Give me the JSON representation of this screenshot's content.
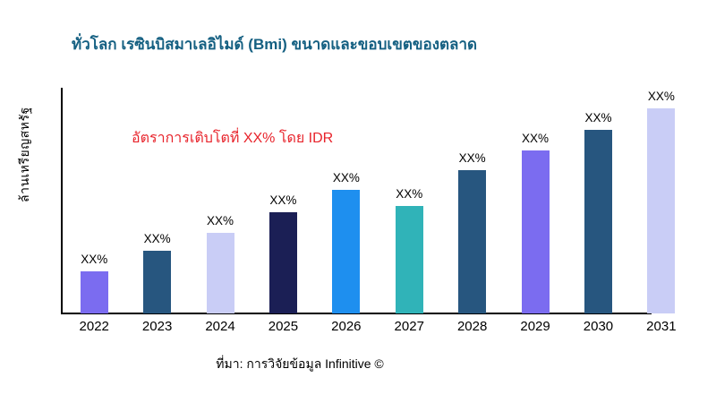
{
  "page": {
    "source": "ที่มา: การวิจัยข้อมูล Infinitive ©"
  },
  "chart_data": {
    "type": "bar",
    "title": "ทั่วโลก เรซินบิสมาเลอิไมด์ (Bmi) ขนาดและขอบเขตของตลาด",
    "ylabel": "ล้านเหรียญสหรัฐ",
    "annotation": {
      "text": "อัตราการเติบโตที่ XX% โดย IDR",
      "color": "#e8232b"
    },
    "categories": [
      "2022",
      "2023",
      "2024",
      "2025",
      "2026",
      "2027",
      "2028",
      "2029",
      "2030",
      "2031"
    ],
    "values": [
      47,
      70,
      90,
      113,
      138,
      120,
      160,
      182,
      205,
      230
    ],
    "bar_labels": [
      "XX%",
      "XX%",
      "XX%",
      "XX%",
      "XX%",
      "XX%",
      "XX%",
      "XX%",
      "XX%",
      "XX%"
    ],
    "colors": [
      "#7b6cf0",
      "#27567f",
      "#c9cdf6",
      "#1b1f55",
      "#1e8fef",
      "#30b3b8",
      "#27567f",
      "#7b6cf0",
      "#27567f",
      "#c9cdf6"
    ],
    "ylim": [
      0,
      250
    ],
    "units": "relative heights (actual values masked as XX%)",
    "legend": "none",
    "grid": false,
    "title_color": "#156082"
  }
}
